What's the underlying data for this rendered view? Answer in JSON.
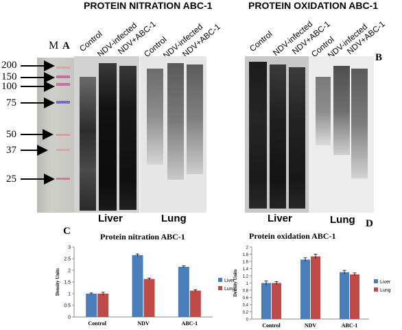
{
  "figure": {
    "panel_a_title": "PROTEIN NITRATION ABC-1",
    "panel_b_title": "PROTEIN OXIDATION  ABC-1",
    "marker_label": "M",
    "panel_letters": [
      "A",
      "B",
      "C",
      "D"
    ],
    "marker_weights": [
      "200",
      "150",
      "100",
      "75",
      "50",
      "37",
      "25"
    ],
    "lane_labels": [
      "Control",
      "NDV-infected",
      "NDV+ABC-1"
    ],
    "tissue_labels": [
      "Liver",
      "Lung"
    ]
  },
  "chart_data": [
    {
      "type": "bar",
      "title": "Protein nitration ABC-1",
      "ylabel": "Density Units",
      "categories": [
        "Control",
        "NDV",
        "ABC-1"
      ],
      "series": [
        {
          "name": "Liver",
          "color": "#4a7ebb",
          "values": [
            1.0,
            2.65,
            2.15
          ],
          "errors": [
            0.03,
            0.05,
            0.04
          ]
        },
        {
          "name": "Lung",
          "color": "#be4b48",
          "values": [
            1.0,
            1.63,
            1.13
          ],
          "errors": [
            0.06,
            0.04,
            0.04
          ]
        }
      ],
      "ylim": [
        0,
        3
      ],
      "yticks": [
        "0",
        "0.5",
        "1",
        "1.5",
        "2",
        "2.5",
        "3"
      ],
      "legend": "right"
    },
    {
      "type": "bar",
      "title": "Protein oxidation ABC-1",
      "ylabel": "Density Units",
      "categories": [
        "Control",
        "NDV",
        "ABC-1"
      ],
      "series": [
        {
          "name": "Liver",
          "color": "#4a7ebb",
          "values": [
            1.0,
            1.65,
            1.3
          ],
          "errors": [
            0.06,
            0.05,
            0.05
          ]
        },
        {
          "name": "Lung",
          "color": "#be4b48",
          "values": [
            1.0,
            1.74,
            1.24
          ],
          "errors": [
            0.04,
            0.06,
            0.04
          ]
        }
      ],
      "ylim": [
        0,
        2
      ],
      "yticks": [
        "0",
        "0.2",
        "0.4",
        "0.6",
        "0.8",
        "1",
        "1.2",
        "1.4",
        "1.6",
        "1.8",
        "2"
      ],
      "legend": "right"
    }
  ]
}
